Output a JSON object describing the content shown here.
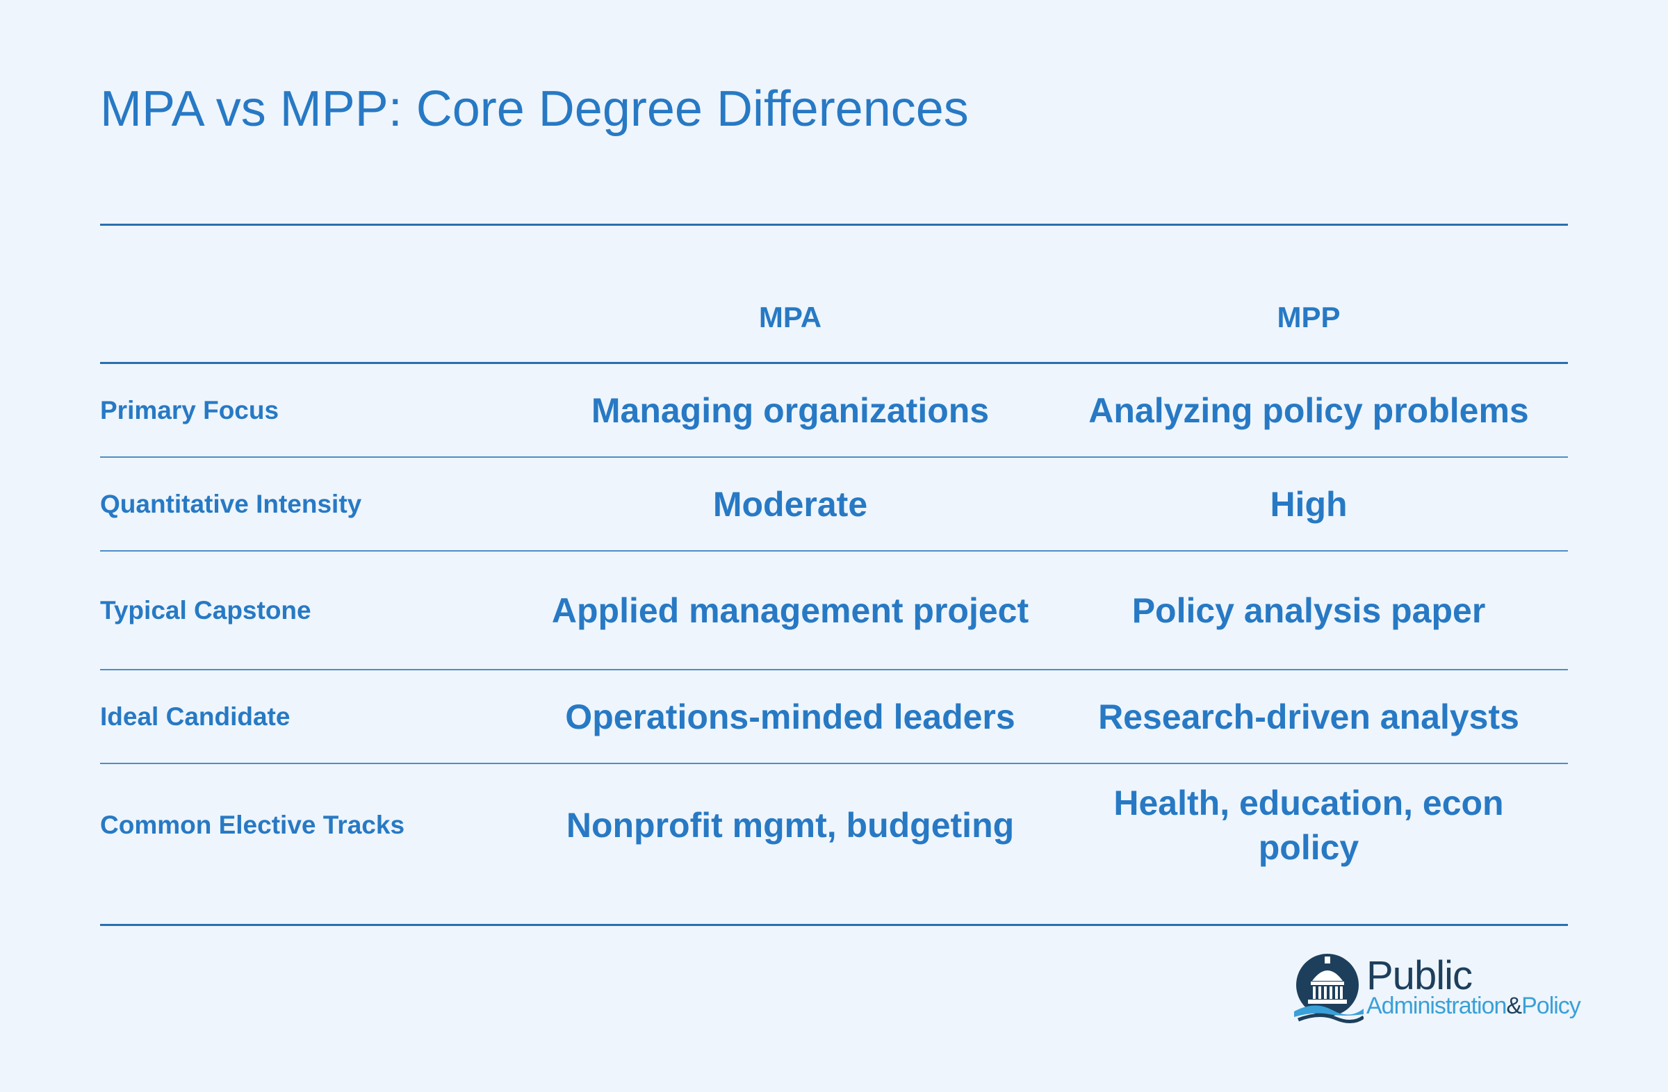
{
  "title": "MPA vs MPP: Core Degree Differences",
  "table": {
    "columns": [
      "",
      "MPA",
      "MPP"
    ],
    "rows": [
      {
        "label": "Primary Focus",
        "mpa": "Managing organizations",
        "mpp": "Analyzing policy problems"
      },
      {
        "label": "Quantitative Intensity",
        "mpa": "Moderate",
        "mpp": "High"
      },
      {
        "label": "Typical Capstone",
        "mpa": "Applied management project",
        "mpp": "Policy analysis paper"
      },
      {
        "label": "Ideal Candidate",
        "mpa": "Operations-minded leaders",
        "mpp": "Research-driven analysts"
      },
      {
        "label": "Common Elective Tracks",
        "mpa": "Nonprofit mgmt, budgeting",
        "mpp": "Health, education, econ policy"
      }
    ]
  },
  "logo": {
    "line1": "Public",
    "line2": "Administration",
    "amp": "&",
    "line3": "Policy",
    "icon": "capitol-dome-icon"
  },
  "colors": {
    "background": "#eef5fc",
    "accent": "#2779c4",
    "rule": "#2a6fae",
    "logo_dark": "#1d3f5c",
    "logo_light": "#3aa0d8"
  }
}
